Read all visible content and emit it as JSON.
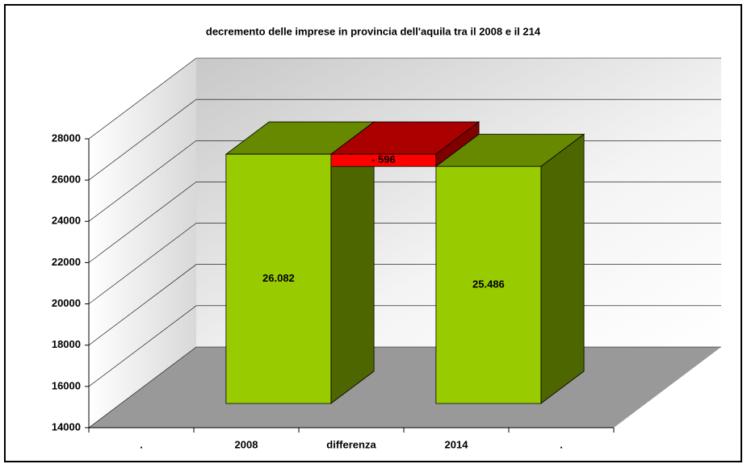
{
  "chart_data": {
    "type": "waterfall",
    "title": "decremento delle imprese in provincia dell'aquila tra il 2008 e il 214",
    "categories": [
      ".",
      "2008",
      "differenza",
      "2014",
      "."
    ],
    "values": [
      null,
      26082,
      -596,
      25486,
      null
    ],
    "value_labels": [
      null,
      "26.082",
      "- 596",
      "25.486",
      null
    ],
    "color": "#99cc00",
    "negative_color": "#ff0000",
    "ylim": [
      14000,
      28000
    ],
    "yticks": [
      14000,
      16000,
      18000,
      20000,
      22000,
      24000,
      26000,
      28000
    ],
    "grid": true
  }
}
